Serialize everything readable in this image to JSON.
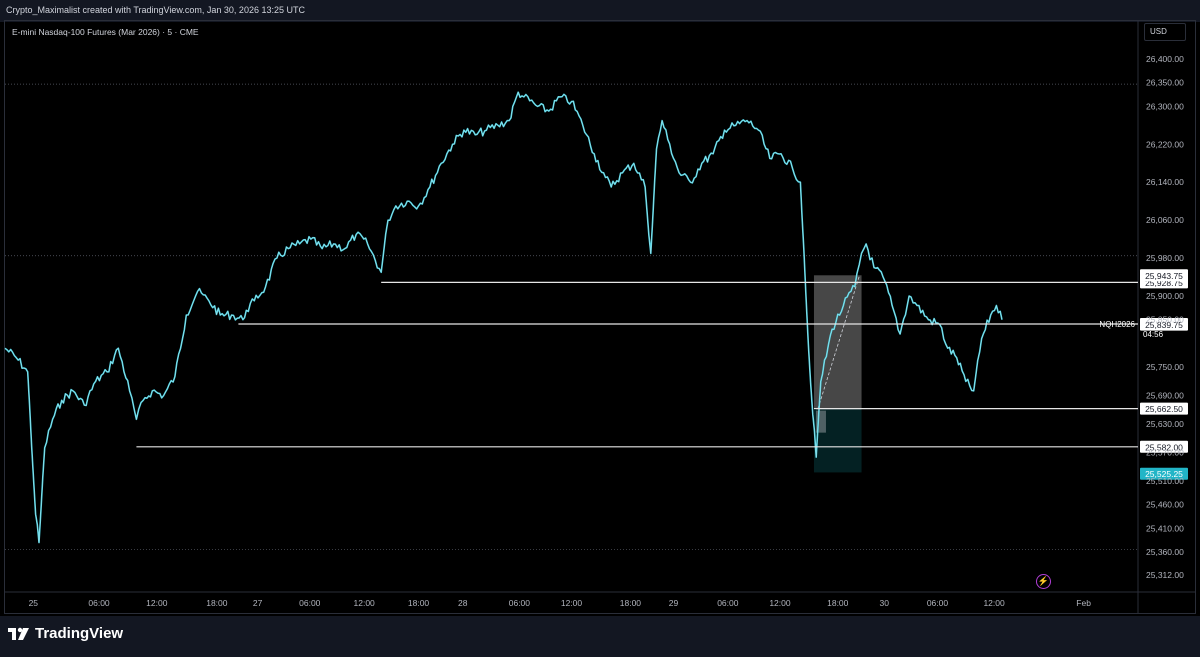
{
  "attribution": "Crypto_Maximalist created with TradingView.com, Jan 30, 2026 13:25 UTC",
  "symbol_title": "E-mini Nasdaq-100 Futures (Mar 2026) · 5 · CME",
  "currency": "USD",
  "brand": "TradingView",
  "chart_data": {
    "type": "line",
    "title": "E-mini Nasdaq-100 Futures (Mar 2026) · 5 · CME",
    "ylim": [
      25280,
      26440
    ],
    "xlim": [
      0,
      100
    ],
    "x_tick_labels": [
      {
        "x": 2.5,
        "label": "25"
      },
      {
        "x": 8.3,
        "label": "06:00"
      },
      {
        "x": 13.4,
        "label": "12:00"
      },
      {
        "x": 18.7,
        "label": "18:00"
      },
      {
        "x": 22.3,
        "label": "27"
      },
      {
        "x": 26.9,
        "label": "06:00"
      },
      {
        "x": 31.7,
        "label": "12:00"
      },
      {
        "x": 36.5,
        "label": "18:00"
      },
      {
        "x": 40.4,
        "label": "28"
      },
      {
        "x": 45.4,
        "label": "06:00"
      },
      {
        "x": 50.0,
        "label": "12:00"
      },
      {
        "x": 55.2,
        "label": "18:00"
      },
      {
        "x": 59.0,
        "label": "29"
      },
      {
        "x": 63.8,
        "label": "06:00"
      },
      {
        "x": 68.4,
        "label": "12:00"
      },
      {
        "x": 73.5,
        "label": "18:00"
      },
      {
        "x": 77.6,
        "label": "30"
      },
      {
        "x": 82.3,
        "label": "06:00"
      },
      {
        "x": 87.3,
        "label": "12:00"
      },
      {
        "x": 95.2,
        "label": "Feb"
      }
    ],
    "y_tick_labels": [
      "26,400.00",
      "26,350.00",
      "26,300.00",
      "26,220.00",
      "26,140.00",
      "26,060.00",
      "25,980.00",
      "25,900.00",
      "25,850.00",
      "25,750.00",
      "25,690.00",
      "25,630.00",
      "25,570.00",
      "25,510.00",
      "25,460.00",
      "25,410.00",
      "25,360.00",
      "25,312.00"
    ],
    "y_tick_values": [
      26400,
      26350,
      26300,
      26220,
      26140,
      26060,
      25980,
      25900,
      25850,
      25750,
      25690,
      25630,
      25570,
      25510,
      25460,
      25410,
      25360,
      25312
    ],
    "series": [
      {
        "color": "#4dd0e1",
        "x": [
          0,
          1,
          2,
          2.7,
          3.0,
          3.5,
          4.2,
          5,
          6,
          7,
          8,
          9,
          10,
          11,
          11.6,
          12.2,
          13,
          14,
          15,
          16,
          17,
          18,
          19,
          20,
          21,
          21.3,
          22,
          23,
          24,
          25,
          26,
          27,
          28,
          29,
          30,
          31,
          32,
          33.2,
          33.8,
          34.5,
          35.5,
          36.5,
          37.5,
          38.5,
          39.5,
          40.5,
          41.5,
          42.5,
          43.5,
          44.5,
          45.3,
          45.8,
          47,
          48,
          49,
          50,
          51,
          52,
          53,
          53.5,
          54.5,
          55.5,
          56.5,
          57,
          57.5,
          58,
          58.5,
          59.5,
          60.5,
          61.5,
          62.5,
          63.5,
          64.5,
          65.5,
          66.5,
          67.5,
          68.5,
          69.5,
          70.2,
          70.5,
          70.9,
          71.3,
          71.6,
          72,
          73,
          74,
          75,
          75.6,
          76,
          76.7,
          77.5,
          78.3,
          79,
          79.8,
          80.5,
          81.5,
          82.5,
          83.2,
          84,
          84.8,
          85.5,
          86.2,
          87,
          87.5,
          88
        ],
        "y": [
          25790,
          25770,
          25740,
          25440,
          25380,
          25580,
          25640,
          25680,
          25700,
          25670,
          25720,
          25740,
          25790,
          25700,
          25640,
          25680,
          25700,
          25690,
          25730,
          25860,
          25910,
          25890,
          25860,
          25860,
          25850,
          25870,
          25890,
          25920,
          25980,
          26000,
          26010,
          26020,
          26000,
          26010,
          26000,
          26030,
          26010,
          25950,
          26060,
          26090,
          26100,
          26090,
          26130,
          26180,
          26220,
          26250,
          26240,
          26250,
          26260,
          26270,
          26330,
          26320,
          26300,
          26290,
          26320,
          26310,
          26260,
          26200,
          26150,
          26130,
          26160,
          26180,
          26130,
          25990,
          26210,
          26270,
          26230,
          26160,
          26140,
          26180,
          26200,
          26250,
          26260,
          26270,
          26250,
          26190,
          26200,
          26170,
          26140,
          26000,
          25800,
          25650,
          25560,
          25720,
          25830,
          25880,
          25920,
          25990,
          26010,
          25960,
          25940,
          25880,
          25820,
          25900,
          25880,
          25850,
          25840,
          25790,
          25770,
          25720,
          25700,
          25810,
          25860,
          25880,
          25850
        ]
      }
    ],
    "levels": [
      {
        "price": 25928.75,
        "label": "25,928.75",
        "x_start": 33.2
      },
      {
        "price": 25841.0,
        "label": "25,841.00",
        "x_start": 20.6,
        "symbol": "NQH2026",
        "countdown": "04:56"
      },
      {
        "price": 25839.75,
        "label": "25,839.75",
        "x_start": null
      },
      {
        "price": 25943.75,
        "label": "25,943.75",
        "x_start": null
      },
      {
        "price": 25662.5,
        "label": "25,662.50",
        "x_start": 71.6
      },
      {
        "price": 25582.0,
        "label": "25,582.00",
        "x_start": 11.6
      },
      {
        "price": 25525.25,
        "label": "25,525.25",
        "x_start": null,
        "highlight": true
      }
    ],
    "dotted_levels": [
      26347,
      25985,
      25365
    ],
    "position_box": {
      "x0": 71.4,
      "x1": 75.6,
      "entry": 25662.5,
      "stop": 25528,
      "target": 25943.75
    }
  }
}
